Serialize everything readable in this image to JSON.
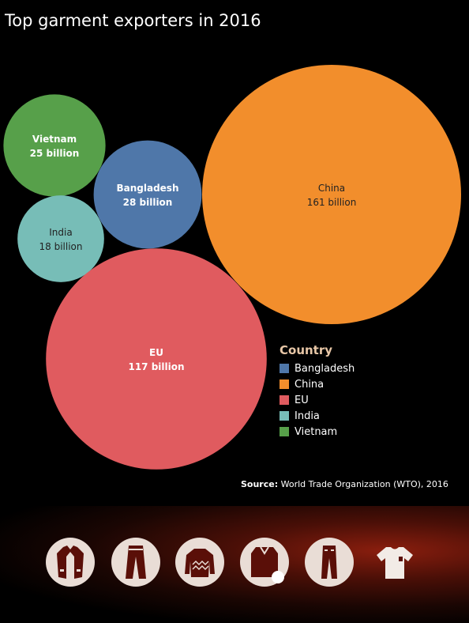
{
  "header": {
    "title": "Top garment exporters in 2016"
  },
  "chart_data": {
    "type": "bubble",
    "title": "Top garment exporters in 2016",
    "unit": "billion",
    "points": [
      {
        "name": "Vietnam",
        "value": 25,
        "label": "25 billion",
        "color": "#57a04a"
      },
      {
        "name": "Bangladesh",
        "value": 28,
        "label": "28 billion",
        "color": "#4f77a9"
      },
      {
        "name": "India",
        "value": 18,
        "label": "18 billion",
        "color": "#77bdb7"
      },
      {
        "name": "China",
        "value": 161,
        "label": "161 billion",
        "color": "#f28e2c"
      },
      {
        "name": "EU",
        "value": 117,
        "label": "117 billion",
        "color": "#e05b5f"
      }
    ],
    "legend": {
      "title": "Country",
      "placement": "right",
      "items": [
        {
          "name": "Bangladesh",
          "color": "#4f77a9"
        },
        {
          "name": "China",
          "color": "#f28e2c"
        },
        {
          "name": "EU",
          "color": "#e05b5f"
        },
        {
          "name": "India",
          "color": "#77bdb7"
        },
        {
          "name": "Vietnam",
          "color": "#57a04a"
        }
      ]
    }
  },
  "source": {
    "label": "Source:",
    "text": "World Trade Organization (WTO), 2016"
  },
  "footer": {
    "icons": [
      "jacket-icon",
      "trousers-icon",
      "sweater-icon",
      "shirt-icon",
      "jeans-icon",
      "tshirt-icon"
    ],
    "icon_color": "#5a0f08",
    "circle_color": "#e9ddd6"
  }
}
